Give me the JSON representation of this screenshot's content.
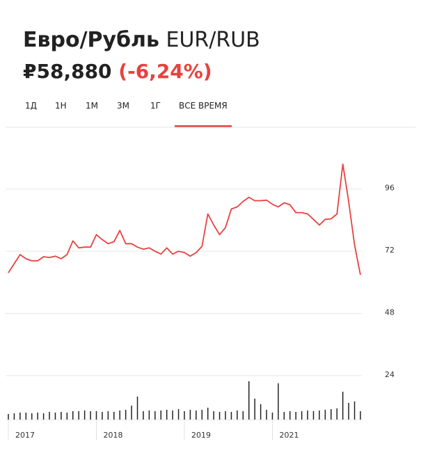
{
  "header": {
    "title": "Евро/Рубль",
    "ticker": "EUR/RUB",
    "price": "₽58,880",
    "change": "(-6,24%)"
  },
  "tabs": {
    "items": [
      "1Д",
      "1Н",
      "1М",
      "3М",
      "1Г",
      "ВСЕ ВРЕМЯ"
    ],
    "active": 5
  },
  "chart_data": [
    {
      "type": "line",
      "color": "#e8413e",
      "ylim": [
        24,
        108
      ],
      "yticks": [
        24,
        48,
        72,
        96
      ],
      "grid": true,
      "categories": [
        "2017",
        null,
        null,
        null,
        null,
        null,
        null,
        null,
        null,
        null,
        null,
        null,
        null,
        null,
        null,
        "2018",
        null,
        null,
        null,
        null,
        null,
        null,
        null,
        null,
        null,
        null,
        null,
        null,
        null,
        null,
        "2019",
        null,
        null,
        null,
        null,
        null,
        null,
        null,
        null,
        null,
        null,
        null,
        null,
        null,
        null,
        "2021",
        null,
        null,
        null,
        null,
        null,
        null,
        null,
        null,
        null,
        null,
        null,
        null,
        null,
        null,
        null
      ],
      "values": [
        63.7,
        67.2,
        70.7,
        69.1,
        68.3,
        68.3,
        69.9,
        69.6,
        70.1,
        69.1,
        70.7,
        76.0,
        73.3,
        73.6,
        73.6,
        78.4,
        76.5,
        74.9,
        75.7,
        80.0,
        74.9,
        74.9,
        73.6,
        72.8,
        73.3,
        72.0,
        70.9,
        73.3,
        70.9,
        72.0,
        71.5,
        70.1,
        71.5,
        73.9,
        86.4,
        82.1,
        78.4,
        81.1,
        88.3,
        89.1,
        91.2,
        92.8,
        91.5,
        91.5,
        91.7,
        90.1,
        89.1,
        90.7,
        89.9,
        86.9,
        86.9,
        86.4,
        84.3,
        82.1,
        84.3,
        84.5,
        86.4,
        105.6,
        91.2,
        74.4,
        62.9
      ]
    },
    {
      "type": "bar",
      "color": "#222222",
      "ylim": [
        0,
        60
      ],
      "values": [
        8,
        9,
        10,
        10,
        9,
        10,
        9,
        11,
        10,
        11,
        10,
        12,
        12,
        13,
        12,
        12,
        11,
        12,
        11,
        13,
        14,
        20,
        33,
        12,
        13,
        12,
        13,
        14,
        13,
        15,
        12,
        14,
        13,
        14,
        17,
        12,
        11,
        12,
        11,
        13,
        12,
        55,
        30,
        22,
        14,
        10,
        52,
        11,
        12,
        11,
        12,
        13,
        12,
        13,
        14,
        15,
        16,
        40,
        24,
        26,
        12
      ]
    }
  ]
}
